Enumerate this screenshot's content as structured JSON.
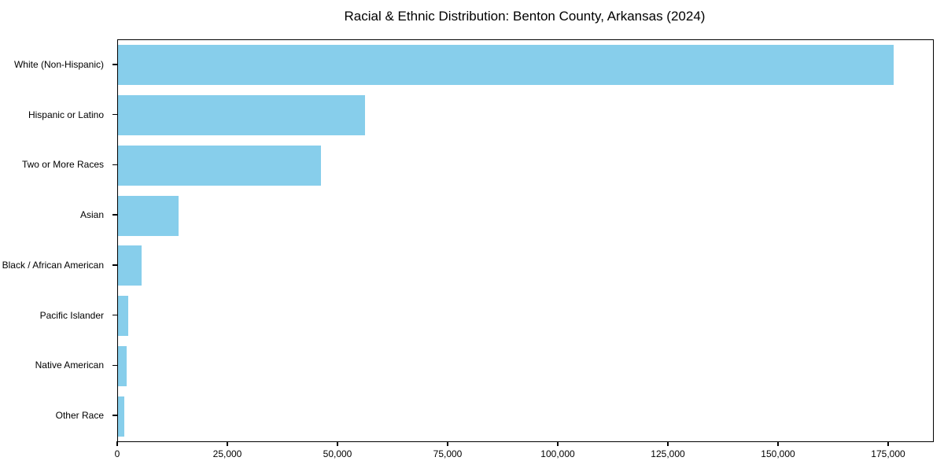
{
  "chart_data": {
    "type": "bar",
    "orientation": "horizontal",
    "title": "Racial & Ethnic Distribution: Benton County, Arkansas (2024)",
    "categories": [
      "White (Non-Hispanic)",
      "Hispanic or Latino",
      "Two or More Races",
      "Asian",
      "Black / African American",
      "Pacific Islander",
      "Native American",
      "Other Race"
    ],
    "values": [
      176000,
      56000,
      46000,
      13700,
      5400,
      2300,
      1900,
      1450
    ],
    "xlabel": "",
    "ylabel": "",
    "xlim": [
      0,
      185000
    ],
    "x_ticks": [
      0,
      25000,
      50000,
      75000,
      100000,
      125000,
      150000,
      175000
    ],
    "x_tick_labels": [
      "0",
      "25,000",
      "50,000",
      "75,000",
      "100,000",
      "125,000",
      "150,000",
      "175,000"
    ],
    "bar_color": "#87CEEB",
    "frame_color": "#000000",
    "grid": false,
    "legend": null,
    "bar_fraction": 0.8
  }
}
